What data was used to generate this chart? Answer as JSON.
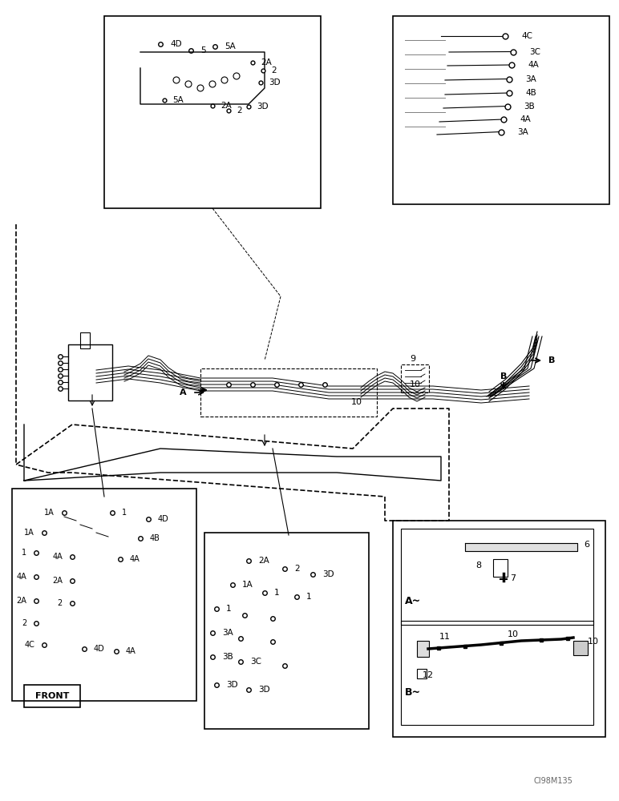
{
  "bg_color": "#ffffff",
  "line_color": "#000000",
  "fig_width": 7.72,
  "fig_height": 10.0,
  "dpi": 100,
  "title_text": "",
  "watermark": "CI98M135",
  "labels": {
    "top_box_left": {
      "items": [
        "4D",
        "5",
        "5A",
        "2A",
        "2",
        "3D",
        "5A",
        "2A",
        "2",
        "3D"
      ]
    },
    "top_box_right": {
      "items": [
        "4C",
        "3C",
        "4A",
        "3A",
        "4B",
        "3B",
        "4A",
        "3A"
      ]
    },
    "bottom_left_box": {
      "items": [
        "1A",
        "1",
        "4D",
        "1A",
        "1",
        "4B",
        "4A",
        "2A",
        "2",
        "4C",
        "4D",
        "4A"
      ]
    },
    "bottom_mid_box": {
      "items": [
        "2A",
        "2",
        "3D",
        "1A",
        "1",
        "1",
        "3A",
        "3B",
        "3C",
        "3D"
      ]
    },
    "bottom_right_box": {
      "items": [
        "6",
        "8",
        "7",
        "11",
        "10",
        "12"
      ]
    },
    "main_labels": [
      "A",
      "B",
      "9",
      "10",
      "10"
    ],
    "front_label": "FRONT"
  }
}
